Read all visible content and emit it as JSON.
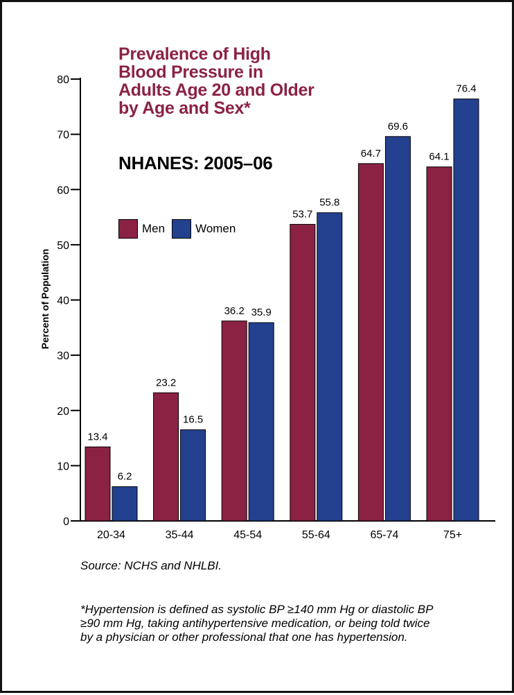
{
  "chart_data": {
    "type": "bar",
    "title_lines": [
      "Prevalence of High",
      "Blood Pressure in",
      "Adults Age 20 and Older",
      "by Age and Sex*"
    ],
    "subtitle": "NHANES: 2005–06",
    "xlabel": "",
    "ylabel": "Percent of Population",
    "ylim": [
      0,
      80
    ],
    "yticks": [
      "0",
      "10",
      "20",
      "30",
      "40",
      "50",
      "60",
      "70",
      "80"
    ],
    "categories": [
      "20-34",
      "35-44",
      "45-54",
      "55-64",
      "65-74",
      "75+"
    ],
    "series": [
      {
        "name": "Men",
        "color": "#8b2244",
        "values": [
          13.4,
          23.2,
          36.2,
          53.7,
          64.7,
          64.1
        ],
        "labels": [
          "13.4",
          "23.2",
          "36.2",
          "53.7",
          "64.7",
          "64.1"
        ]
      },
      {
        "name": "Women",
        "color": "#24418f",
        "values": [
          6.2,
          16.5,
          35.9,
          55.8,
          69.6,
          76.4
        ],
        "labels": [
          "6.2",
          "16.5",
          "35.9",
          "55.8",
          "69.6",
          "76.4"
        ]
      }
    ],
    "legend": "top-left",
    "grid": false
  },
  "source": "Source: NCHS and NHLBI.",
  "footnote_lines": [
    "*Hypertension is defined as systolic BP ≥140 mm Hg or diastolic BP",
    "≥90 mm Hg, taking antihypertensive medication, or being told twice",
    "by a physician or other professional that one has hypertension."
  ]
}
